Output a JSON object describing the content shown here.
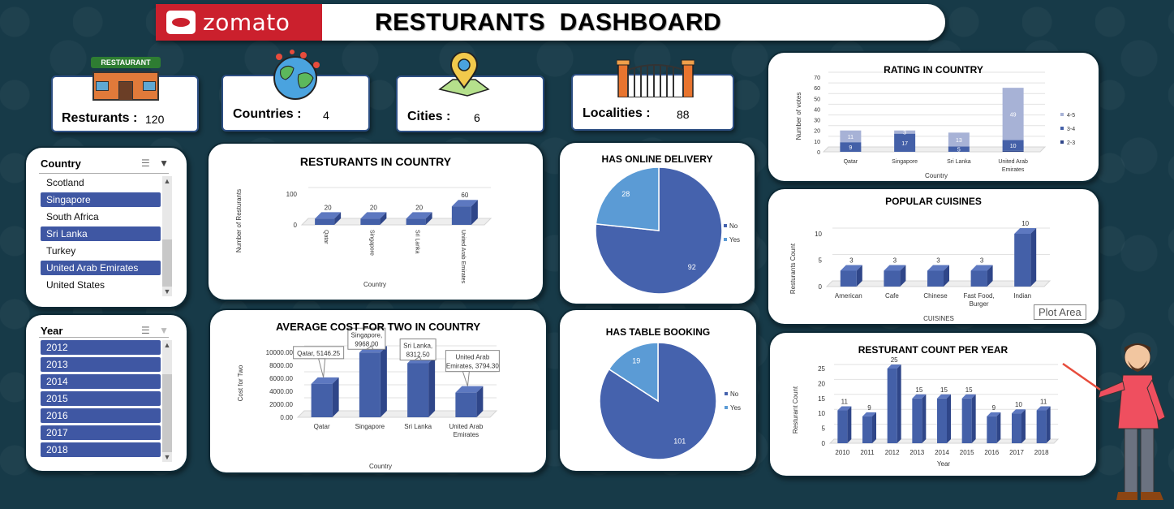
{
  "header": {
    "logo_text": "zomato",
    "title": "RESTURANTS  DASHBOARD"
  },
  "kpis": {
    "restaurants": {
      "label": "Resturants :",
      "value": "120"
    },
    "countries": {
      "label": "Countries :",
      "value": "4"
    },
    "cities": {
      "label": "Cities :",
      "value": "6"
    },
    "localities": {
      "label": "Localities :",
      "value": "88"
    },
    "restaurant_sign": "RESTAURANT"
  },
  "slicer_country": {
    "title": "Country",
    "items": [
      {
        "label": "Scotland",
        "selected": false
      },
      {
        "label": "Singapore",
        "selected": true
      },
      {
        "label": "South Africa",
        "selected": false
      },
      {
        "label": "Sri Lanka",
        "selected": true
      },
      {
        "label": "Turkey",
        "selected": false
      },
      {
        "label": "United Arab Emirates",
        "selected": true
      },
      {
        "label": "United States",
        "selected": false
      }
    ]
  },
  "slicer_year": {
    "title": "Year",
    "items": [
      {
        "label": "2012",
        "selected": true
      },
      {
        "label": "2013",
        "selected": true
      },
      {
        "label": "2014",
        "selected": true
      },
      {
        "label": "2015",
        "selected": true
      },
      {
        "label": "2016",
        "selected": true
      },
      {
        "label": "2017",
        "selected": true
      },
      {
        "label": "2018",
        "selected": true
      }
    ]
  },
  "tooltip": "Plot Area",
  "colors": {
    "bar": "#4460a8",
    "bar_top": "#5d78c0",
    "bar_side": "#2f4689",
    "pie_dark": "#4562ad",
    "pie_light": "#5b9bd5",
    "stack_light": "#a7b2d6",
    "background": "#173a48"
  },
  "chart_data": [
    {
      "id": "restaurants_in_country",
      "type": "bar",
      "title": "RESTURANTS IN COUNTRY",
      "xlabel": "Country",
      "ylabel": "Number of Resturants",
      "categories": [
        "Qatar",
        "Singapore",
        "Sri Lanka",
        "United Arab Emirates"
      ],
      "values": [
        20,
        20,
        20,
        60
      ],
      "yticks": [
        "0",
        "100"
      ],
      "ylim": [
        0,
        100
      ]
    },
    {
      "id": "average_cost",
      "type": "bar",
      "title": "AVERAGE COST FOR TWO IN COUNTRY",
      "xlabel": "Country",
      "ylabel": "Cost for Two",
      "categories": [
        "Qatar",
        "Singapore",
        "Sri Lanka",
        "United Arab Emirates"
      ],
      "values": [
        5146.25,
        9968.0,
        8312.5,
        3794.3
      ],
      "callouts": [
        "Qatar, 5146.25",
        "Singapore, 9968.00",
        "Sri Lanka, 8312.50",
        "United Arab Emirates, 3794.30"
      ],
      "yticks": [
        "0.00",
        "2000.00",
        "4000.00",
        "6000.00",
        "8000.00",
        "10000.00"
      ],
      "ylim": [
        0,
        10000
      ]
    },
    {
      "id": "online_delivery",
      "type": "pie",
      "title": "HAS ONLINE DELIVERY",
      "slices": [
        {
          "label": "No",
          "value": 92
        },
        {
          "label": "Yes",
          "value": 28
        }
      ]
    },
    {
      "id": "table_booking",
      "type": "pie",
      "title": "HAS TABLE BOOKING",
      "slices": [
        {
          "label": "No",
          "value": 101
        },
        {
          "label": "Yes",
          "value": 19
        }
      ]
    },
    {
      "id": "rating_in_country",
      "type": "bar",
      "stacked": true,
      "title": "RATING IN COUNTRY",
      "xlabel": "Country",
      "ylabel": "Number of votes",
      "categories": [
        "Qatar",
        "Singapore",
        "Sri Lanka",
        "United Arab Emirates"
      ],
      "series": [
        {
          "name": "2-3",
          "values": [
            0,
            0,
            0,
            1
          ]
        },
        {
          "name": "3-4",
          "values": [
            9,
            17,
            5,
            10
          ]
        },
        {
          "name": "4-5",
          "values": [
            11,
            3,
            13,
            49
          ]
        }
      ],
      "yticks": [
        "0",
        "10",
        "20",
        "30",
        "40",
        "50",
        "60",
        "70"
      ],
      "ylim": [
        0,
        70
      ]
    },
    {
      "id": "popular_cuisines",
      "type": "bar",
      "title": "POPULAR CUISINES",
      "xlabel": "CUISINES",
      "ylabel": "Resturants Count",
      "categories": [
        "American",
        "Cafe",
        "Chinese",
        "Fast Food, Burger",
        "Indian"
      ],
      "values": [
        3,
        3,
        3,
        3,
        10
      ],
      "yticks": [
        "0",
        "5",
        "10"
      ],
      "ylim": [
        0,
        12
      ]
    },
    {
      "id": "count_per_year",
      "type": "bar",
      "title": "RESTURANT COUNT PER YEAR",
      "xlabel": "Year",
      "ylabel": "Resturant Count",
      "categories": [
        "2010",
        "2011",
        "2012",
        "2013",
        "2014",
        "2015",
        "2016",
        "2017",
        "2018"
      ],
      "values": [
        11,
        9,
        25,
        15,
        15,
        15,
        9,
        10,
        11
      ],
      "yticks": [
        "0",
        "5",
        "10",
        "15",
        "20",
        "25"
      ],
      "ylim": [
        0,
        25
      ]
    }
  ]
}
